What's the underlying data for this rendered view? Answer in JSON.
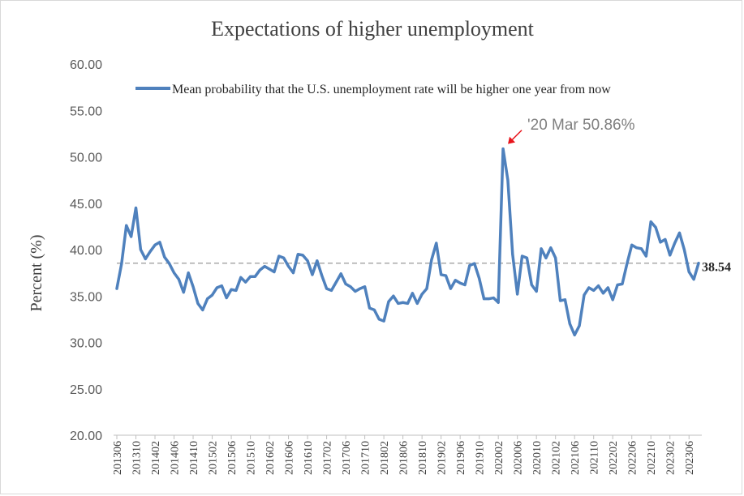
{
  "chart_data": {
    "type": "line",
    "title": "Expectations  of higher unemployment",
    "ylabel": "Percent (%)",
    "xlabel": "",
    "ylim": [
      20,
      60
    ],
    "yticks": [
      "20.00",
      "25.00",
      "30.00",
      "35.00",
      "40.00",
      "45.00",
      "50.00",
      "55.00",
      "60.00"
    ],
    "grid": false,
    "legend_position": "top",
    "x_start": "201306",
    "x_tick_labels": [
      "201306",
      "201310",
      "201402",
      "201406",
      "201410",
      "201502",
      "201506",
      "201510",
      "201602",
      "201606",
      "201610",
      "201702",
      "201706",
      "201710",
      "201802",
      "201806",
      "201810",
      "201902",
      "201906",
      "201910",
      "202002",
      "202006",
      "202010",
      "202102",
      "202106",
      "202110",
      "202202",
      "202206",
      "202210",
      "202302",
      "202306"
    ],
    "series": [
      {
        "name": "Mean probability that the U.S. unemployment rate will be higher one year from now",
        "color": "#4f81bd",
        "values": [
          35.8,
          38.5,
          42.6,
          41.4,
          44.5,
          40.0,
          39.0,
          39.8,
          40.5,
          40.8,
          39.2,
          38.5,
          37.5,
          36.8,
          35.4,
          37.5,
          36.0,
          34.2,
          33.5,
          34.7,
          35.1,
          35.9,
          36.1,
          34.8,
          35.7,
          35.6,
          37.0,
          36.5,
          37.1,
          37.1,
          37.8,
          38.2,
          37.9,
          37.6,
          39.3,
          39.1,
          38.2,
          37.5,
          39.5,
          39.4,
          38.8,
          37.3,
          38.8,
          37.2,
          35.8,
          35.6,
          36.5,
          37.4,
          36.3,
          36.0,
          35.5,
          35.8,
          36.0,
          33.7,
          33.5,
          32.5,
          32.3,
          34.4,
          35.0,
          34.2,
          34.3,
          34.2,
          35.3,
          34.2,
          35.2,
          35.8,
          38.9,
          40.7,
          37.3,
          37.2,
          35.8,
          36.7,
          36.4,
          36.2,
          38.3,
          38.5,
          36.9,
          34.7,
          34.7,
          34.8,
          34.3,
          50.86,
          47.5,
          39.5,
          35.2,
          39.3,
          39.1,
          36.2,
          35.5,
          40.1,
          39.1,
          40.2,
          39.1,
          34.5,
          34.6,
          32.0,
          30.8,
          31.8,
          35.1,
          35.9,
          35.6,
          36.1,
          35.3,
          35.9,
          34.6,
          36.2,
          36.3,
          38.5,
          40.5,
          40.2,
          40.1,
          39.3,
          43.0,
          42.4,
          40.8,
          41.1,
          39.4,
          40.7,
          41.8,
          40.0,
          37.6,
          36.8,
          38.54
        ]
      }
    ],
    "reference_line": {
      "value": 38.54,
      "label": "38.54",
      "style": "dashed",
      "color": "#999999"
    },
    "annotation": {
      "text": "'20 Mar 50.86%",
      "arrow_color": "#e8141b",
      "point_index": 81
    }
  }
}
